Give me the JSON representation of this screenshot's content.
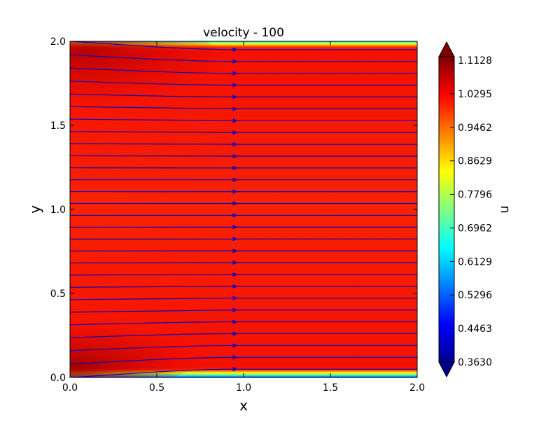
{
  "chart_data": {
    "type": "heatmap",
    "title": "velocity - 100",
    "xlabel": "x",
    "ylabel": "y",
    "xlim": [
      0.0,
      2.0
    ],
    "ylim": [
      0.0,
      2.0
    ],
    "x_ticks": [
      "0.0",
      "0.5",
      "1.0",
      "1.5",
      "2.0"
    ],
    "y_ticks": [
      "0.0",
      "0.5",
      "1.0",
      "1.5",
      "2.0"
    ],
    "x_tick_values": [
      0.0,
      0.5,
      1.0,
      1.5,
      2.0
    ],
    "y_tick_values": [
      0.0,
      0.5,
      1.0,
      1.5,
      2.0
    ],
    "colorbar": {
      "label": "u",
      "min": 0.363,
      "max": 1.1128,
      "ticks": [
        "1.1128",
        "1.0295",
        "0.9462",
        "0.8629",
        "0.7796",
        "0.6962",
        "0.6129",
        "0.5296",
        "0.4463",
        "0.3630"
      ],
      "tick_values": [
        1.1128,
        1.0295,
        0.9462,
        0.8629,
        0.7796,
        0.6962,
        0.6129,
        0.5296,
        0.4463,
        0.363
      ],
      "extend": "both",
      "colormap": "jet"
    },
    "field_description": "channel flow velocity magnitude u; walls at y=0 and y=2 with near-zero velocity boundary layers; core ~1.0-1.05; higher (~1.1) near inlet corners",
    "streamlines": {
      "direction": "+x",
      "color": "#0000cc",
      "arrow_x": 0.95,
      "count": 28
    },
    "grid": false
  }
}
